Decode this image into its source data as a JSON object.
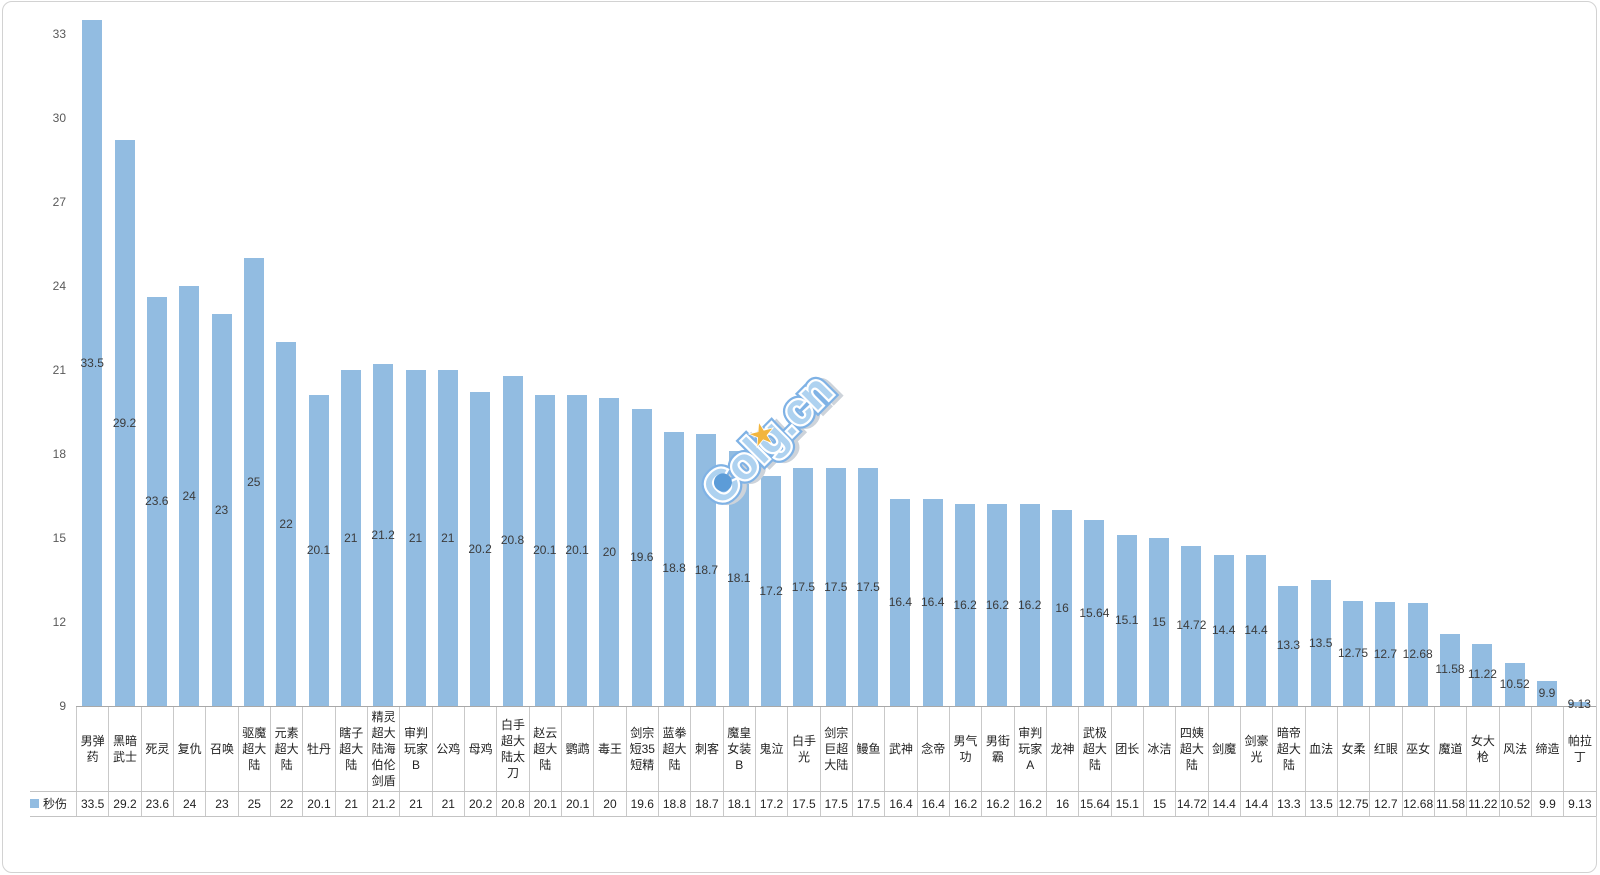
{
  "watermark": {
    "text": "Colg.cn",
    "star": "★"
  },
  "legend": {
    "series_label": "秒伤"
  },
  "chart_data": {
    "type": "bar",
    "title": "",
    "xlabel": "",
    "ylabel": "",
    "categories": [
      "男弹药",
      "黑暗武士",
      "死灵",
      "复仇",
      "召唤",
      "驱魔超大陆",
      "元素超大陆",
      "牡丹",
      "瞎子超大陆",
      "精灵超大陆海伯伦剑盾",
      "审判玩家B",
      "公鸡",
      "母鸡",
      "白手超大陆太刀",
      "赵云超大陆",
      "鹦鹉",
      "毒王",
      "剑宗短35短精",
      "蓝拳超大陆",
      "刺客",
      "魔皇女装B",
      "鬼泣",
      "白手光",
      "剑宗巨超大陆",
      "鳗鱼",
      "武神",
      "念帝",
      "男气功",
      "男街霸",
      "审判玩家A",
      "龙神",
      "武极超大陆",
      "团长",
      "冰洁",
      "四姨超大陆",
      "剑魔",
      "剑豪光",
      "暗帝超大陆",
      "血法",
      "女柔",
      "红眼",
      "巫女",
      "魔道",
      "女大枪",
      "风法",
      "缔造",
      "帕拉丁"
    ],
    "series": [
      {
        "name": "秒伤",
        "values": [
          33.5,
          29.2,
          23.6,
          24,
          23,
          25,
          22,
          20.1,
          21,
          21.2,
          21,
          21,
          20.2,
          20.8,
          20.1,
          20.1,
          20,
          19.6,
          18.8,
          18.7,
          18.1,
          17.2,
          17.5,
          17.5,
          17.5,
          16.4,
          16.4,
          16.2,
          16.2,
          16.2,
          16,
          15.64,
          15.1,
          15,
          14.72,
          14.4,
          14.4,
          13.3,
          13.5,
          12.75,
          12.7,
          12.68,
          11.58,
          11.22,
          10.52,
          9.9,
          9.13
        ]
      }
    ],
    "ylim": [
      9,
      34.5
    ],
    "yticks": [
      9,
      12,
      15,
      18,
      21,
      24,
      27,
      30,
      33
    ],
    "grid": false,
    "bar_color": "#92bce1",
    "data_labels": "inside-center",
    "legend_position": "bottom-data-table",
    "data_table": true
  }
}
